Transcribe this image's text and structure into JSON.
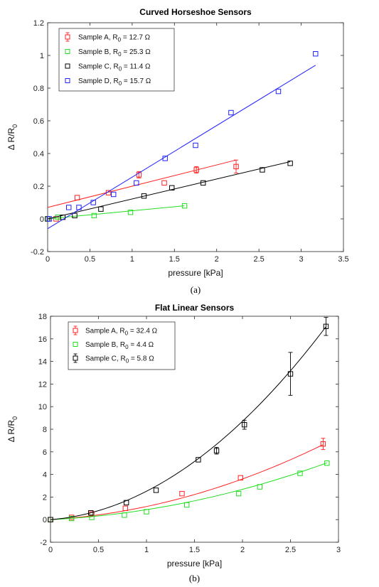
{
  "chart_data": [
    {
      "type": "scatter",
      "title": "Curved Horseshoe Sensors",
      "xlabel": "pressure [kPa]",
      "ylabel_prefix": "Δ R/R",
      "ylabel_sub": "0",
      "caption": "(a)",
      "xlim": [
        0,
        3.5
      ],
      "ylim": [
        -0.2,
        1.2
      ],
      "xticks": [
        0,
        0.5,
        1,
        1.5,
        2,
        2.5,
        3,
        3.5
      ],
      "xtick_labels": [
        "0",
        "0.5",
        "1",
        "1.5",
        "2",
        "2.5",
        "3",
        "3.5"
      ],
      "yticks": [
        -0.2,
        0,
        0.2,
        0.4,
        0.6,
        0.8,
        1,
        1.2
      ],
      "ytick_labels": [
        "-0.2",
        "0",
        "0.2",
        "0.4",
        "0.6",
        "0.8",
        "1",
        "1.2"
      ],
      "legend_position": "top-left",
      "grid": false,
      "series": [
        {
          "legend_prefix": "Sample A, R",
          "legend_sub": "0",
          "legend_suffix": " = 12.7 Ω",
          "color": "#ff2020",
          "x": [
            0.1,
            0.35,
            0.72,
            1.08,
            1.38,
            1.76,
            2.23
          ],
          "y": [
            0.0,
            0.13,
            0.16,
            0.27,
            0.22,
            0.3,
            0.32
          ],
          "err": [
            0,
            0,
            0,
            0.02,
            0,
            0.02,
            0.04
          ],
          "fit": {
            "kind": "linear",
            "x0": 0,
            "x1": 2.23,
            "y0": 0.07,
            "y1": 0.36
          }
        },
        {
          "legend_prefix": "Sample B, R",
          "legend_sub": "0",
          "legend_suffix": " = 25.3 Ω",
          "color": "#22dd22",
          "x": [
            0.0,
            0.12,
            0.55,
            0.98,
            1.62
          ],
          "y": [
            0.0,
            0.01,
            0.02,
            0.04,
            0.08
          ],
          "err": [
            0,
            0,
            0,
            0,
            0
          ],
          "fit": {
            "kind": "linear",
            "x0": 0,
            "x1": 1.62,
            "y0": 0.0,
            "y1": 0.08
          }
        },
        {
          "legend_prefix": "Sample C, R",
          "legend_sub": "0",
          "legend_suffix": " = 11.4 Ω",
          "color": "#000000",
          "x": [
            0.0,
            0.18,
            0.32,
            0.63,
            1.14,
            1.47,
            1.84,
            2.54,
            2.87
          ],
          "y": [
            0.0,
            0.01,
            0.02,
            0.06,
            0.14,
            0.19,
            0.22,
            0.3,
            0.34
          ],
          "err": [
            0,
            0,
            0,
            0,
            0,
            0,
            0,
            0,
            0
          ],
          "fit": {
            "kind": "linear",
            "x0": 0,
            "x1": 2.87,
            "y0": 0.0,
            "y1": 0.35
          }
        },
        {
          "legend_prefix": "Sample D, R",
          "legend_sub": "0",
          "legend_suffix": " = 15.7 Ω",
          "color": "#2020ff",
          "x": [
            0.02,
            0.25,
            0.37,
            0.54,
            0.78,
            1.05,
            1.39,
            1.75,
            2.17,
            2.73,
            3.17
          ],
          "y": [
            0.0,
            0.07,
            0.07,
            0.1,
            0.15,
            0.22,
            0.37,
            0.45,
            0.65,
            0.78,
            1.01
          ],
          "err": [
            0,
            0,
            0,
            0,
            0,
            0,
            0,
            0,
            0,
            0,
            0
          ],
          "fit": {
            "kind": "linear",
            "x0": 0,
            "x1": 3.17,
            "y0": -0.06,
            "y1": 0.94
          }
        }
      ]
    },
    {
      "type": "scatter",
      "title": "Flat Linear Sensors",
      "xlabel": "pressure [kPa]",
      "ylabel_prefix": "Δ R/R",
      "ylabel_sub": "0",
      "caption": "(b)",
      "xlim": [
        0,
        3
      ],
      "ylim": [
        -2,
        18
      ],
      "xticks": [
        0,
        0.5,
        1,
        1.5,
        2,
        2.5,
        3
      ],
      "xtick_labels": [
        "0",
        "0.5",
        "1",
        "1.5",
        "2",
        "2.5",
        "3"
      ],
      "yticks": [
        -2,
        0,
        2,
        4,
        6,
        8,
        10,
        12,
        14,
        16,
        18
      ],
      "ytick_labels": [
        "-2",
        "0",
        "2",
        "4",
        "6",
        "8",
        "10",
        "12",
        "14",
        "16",
        "18"
      ],
      "legend_position": "top-left",
      "grid": false,
      "series": [
        {
          "legend_prefix": "Sample A, R",
          "legend_sub": "0",
          "legend_suffix": " = 32.4 Ω",
          "color": "#ff2020",
          "x": [
            0.0,
            0.22,
            0.43,
            0.78,
            1.37,
            1.98,
            2.84
          ],
          "y": [
            0.0,
            0.2,
            0.5,
            1.0,
            2.3,
            3.7,
            6.7
          ],
          "err": [
            0,
            0,
            0,
            0,
            0,
            0,
            0.5
          ],
          "fit": {
            "kind": "quad",
            "x0": 0,
            "x1": 2.84,
            "a": 0.64,
            "b": 0.52,
            "c": 0
          }
        },
        {
          "legend_prefix": "Sample B, R",
          "legend_sub": "0",
          "legend_suffix": " = 4.4 Ω",
          "color": "#22dd22",
          "x": [
            0.0,
            0.22,
            0.43,
            0.77,
            1.0,
            1.42,
            1.96,
            2.18,
            2.6,
            2.88
          ],
          "y": [
            0.0,
            0.1,
            0.2,
            0.4,
            0.7,
            1.3,
            2.3,
            2.9,
            4.1,
            5.0
          ],
          "err": [
            0,
            0,
            0,
            0,
            0,
            0,
            0,
            0,
            0,
            0
          ],
          "fit": {
            "kind": "quad",
            "x0": 0,
            "x1": 2.88,
            "a": 0.46,
            "b": 0.42,
            "c": 0
          }
        },
        {
          "legend_prefix": "Sample C, R",
          "legend_sub": "0",
          "legend_suffix": " = 5.8 Ω",
          "color": "#000000",
          "x": [
            0.0,
            0.42,
            0.79,
            1.1,
            1.54,
            1.73,
            2.02,
            2.5,
            2.87
          ],
          "y": [
            0.0,
            0.6,
            1.5,
            2.6,
            5.3,
            6.1,
            8.4,
            12.9,
            17.1
          ],
          "err": [
            0,
            0,
            0,
            0,
            0,
            0.3,
            0.4,
            1.9,
            0.8
          ],
          "fit": {
            "kind": "quad",
            "x0": 0,
            "x1": 2.87,
            "a": 1.84,
            "b": 0.67,
            "c": 0
          }
        }
      ]
    }
  ]
}
